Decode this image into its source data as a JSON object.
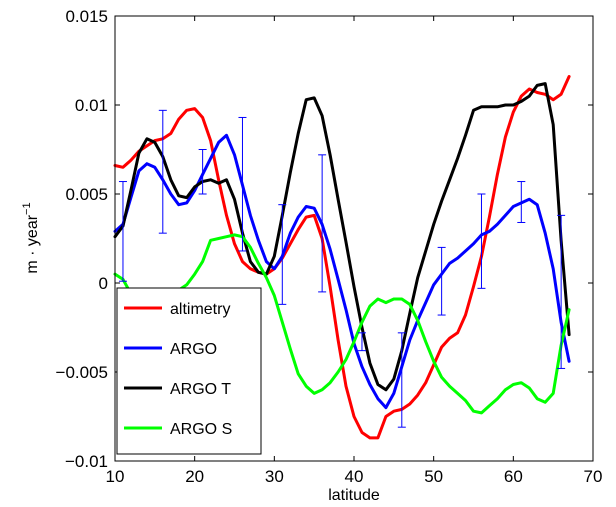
{
  "chart_data": {
    "type": "line",
    "title": "",
    "xlabel": "latitude",
    "ylabel_main": "m · year",
    "ylabel_sup": "−1",
    "xlim": [
      10,
      70
    ],
    "ylim": [
      -0.01,
      0.015
    ],
    "xticks": [
      10,
      20,
      30,
      40,
      50,
      60,
      70
    ],
    "xtick_labels": [
      "10",
      "20",
      "30",
      "40",
      "50",
      "60",
      "70"
    ],
    "yticks": [
      -0.01,
      -0.005,
      0,
      0.005,
      0.01,
      0.015
    ],
    "ytick_labels": [
      "−0.01",
      "−0.005",
      "0",
      "0.005",
      "0.01",
      "0.015"
    ],
    "grid": false,
    "legend_position": "bottom-left",
    "series": [
      {
        "name": "altimetry",
        "color": "#ff0000",
        "x": [
          10,
          11,
          12,
          13,
          14,
          15,
          16,
          17,
          18,
          19,
          20,
          21,
          22,
          23,
          24,
          25,
          26,
          27,
          28,
          29,
          30,
          31,
          32,
          33,
          34,
          35,
          36,
          37,
          38,
          39,
          40,
          41,
          42,
          43,
          44,
          45,
          46,
          47,
          48,
          49,
          50,
          51,
          52,
          53,
          54,
          55,
          56,
          57,
          58,
          59,
          60,
          61,
          62,
          63,
          64,
          65,
          66,
          67
        ],
        "y": [
          0.0066,
          0.0065,
          0.0069,
          0.0074,
          0.0077,
          0.008,
          0.0081,
          0.0084,
          0.0092,
          0.0097,
          0.0098,
          0.0093,
          0.008,
          0.0058,
          0.0038,
          0.0022,
          0.0012,
          0.0008,
          0.0006,
          0.0005,
          0.0008,
          0.0014,
          0.0022,
          0.003,
          0.0037,
          0.0038,
          0.0025,
          -0.0002,
          -0.0032,
          -0.0058,
          -0.0075,
          -0.0084,
          -0.0087,
          -0.0087,
          -0.0075,
          -0.0072,
          -0.0071,
          -0.0068,
          -0.0063,
          -0.0056,
          -0.0046,
          -0.0036,
          -0.0031,
          -0.0028,
          -0.0018,
          -0.0002,
          0.0015,
          0.0037,
          0.0061,
          0.0082,
          0.0096,
          0.0105,
          0.0109,
          0.0107,
          0.0106,
          0.0103,
          0.0106,
          0.0116
        ]
      },
      {
        "name": "ARGO",
        "color": "#0000ff",
        "x": [
          10,
          11,
          12,
          13,
          14,
          15,
          16,
          17,
          18,
          19,
          20,
          21,
          22,
          23,
          24,
          25,
          26,
          27,
          28,
          29,
          30,
          31,
          32,
          33,
          34,
          35,
          36,
          37,
          38,
          39,
          40,
          41,
          42,
          43,
          44,
          45,
          46,
          47,
          48,
          49,
          50,
          51,
          52,
          53,
          54,
          55,
          56,
          57,
          58,
          59,
          60,
          61,
          62,
          63,
          64,
          65,
          66,
          67
        ],
        "y": [
          0.0029,
          0.0033,
          0.0048,
          0.0063,
          0.0067,
          0.0065,
          0.0058,
          0.005,
          0.0044,
          0.0045,
          0.0052,
          0.0061,
          0.007,
          0.0079,
          0.0083,
          0.0072,
          0.0055,
          0.0038,
          0.0024,
          0.0012,
          0.0008,
          0.0015,
          0.0028,
          0.0037,
          0.0043,
          0.0042,
          0.0033,
          0.0019,
          0.0002,
          -0.0015,
          -0.0034,
          -0.0047,
          -0.0057,
          -0.0065,
          -0.007,
          -0.0062,
          -0.0047,
          -0.0032,
          -0.0021,
          -0.0011,
          -0.0001,
          0.0005,
          0.0011,
          0.0014,
          0.0018,
          0.0022,
          0.0027,
          0.0029,
          0.0033,
          0.0038,
          0.0043,
          0.0045,
          0.0047,
          0.0044,
          0.0028,
          0.0008,
          -0.0022,
          -0.0044
        ]
      },
      {
        "name": "ARGO T",
        "color": "#000000",
        "x": [
          10,
          11,
          12,
          13,
          14,
          15,
          16,
          17,
          18,
          19,
          20,
          21,
          22,
          23,
          24,
          25,
          26,
          27,
          28,
          29,
          30,
          31,
          32,
          33,
          34,
          35,
          36,
          37,
          38,
          39,
          40,
          41,
          42,
          43,
          44,
          45,
          46,
          47,
          48,
          49,
          50,
          51,
          52,
          53,
          54,
          55,
          56,
          57,
          58,
          59,
          60,
          61,
          62,
          63,
          64,
          65,
          66,
          67
        ],
        "y": [
          0.0026,
          0.0032,
          0.0052,
          0.0073,
          0.0081,
          0.0079,
          0.0071,
          0.0058,
          0.0049,
          0.0048,
          0.0054,
          0.0057,
          0.0058,
          0.0056,
          0.0058,
          0.0047,
          0.0028,
          0.0012,
          0.0006,
          0.0005,
          0.0015,
          0.0038,
          0.0062,
          0.0084,
          0.0103,
          0.0104,
          0.0094,
          0.0072,
          0.0047,
          0.0023,
          -0.0002,
          -0.0025,
          -0.0045,
          -0.0057,
          -0.006,
          -0.0054,
          -0.0038,
          -0.0017,
          0.0003,
          0.0018,
          0.0033,
          0.0046,
          0.0058,
          0.007,
          0.0083,
          0.0097,
          0.0099,
          0.0099,
          0.0099,
          0.01,
          0.01,
          0.0102,
          0.0105,
          0.0111,
          0.0112,
          0.0089,
          0.0024,
          -0.0029
        ]
      },
      {
        "name": "ARGO S",
        "color": "#00ff00",
        "x": [
          10,
          11,
          12,
          13,
          14,
          15,
          16,
          17,
          18,
          19,
          20,
          21,
          22,
          23,
          24,
          25,
          26,
          27,
          28,
          29,
          30,
          31,
          32,
          33,
          34,
          35,
          36,
          37,
          38,
          39,
          40,
          41,
          42,
          43,
          44,
          45,
          46,
          47,
          48,
          49,
          50,
          51,
          52,
          53,
          54,
          55,
          56,
          57,
          58,
          59,
          60,
          61,
          62,
          63,
          64,
          65,
          66,
          67
        ],
        "y": [
          0.0005,
          0.0002,
          -0.0006,
          -0.0013,
          -0.0014,
          -0.0012,
          -0.0013,
          -0.0011,
          -0.0004,
          -0.0001,
          0.0005,
          0.0012,
          0.0024,
          0.0025,
          0.0026,
          0.0027,
          0.0026,
          0.002,
          0.0011,
          0.0003,
          -0.0007,
          -0.0022,
          -0.0037,
          -0.0051,
          -0.0058,
          -0.0062,
          -0.006,
          -0.0056,
          -0.005,
          -0.0043,
          -0.0033,
          -0.0022,
          -0.0013,
          -0.0009,
          -0.0011,
          -0.0009,
          -0.0009,
          -0.0012,
          -0.0021,
          -0.0033,
          -0.0044,
          -0.0053,
          -0.0058,
          -0.0062,
          -0.0066,
          -0.0072,
          -0.0073,
          -0.0069,
          -0.0065,
          -0.006,
          -0.0057,
          -0.0056,
          -0.0059,
          -0.0065,
          -0.0067,
          -0.0062,
          -0.0035,
          -0.0015
        ]
      }
    ],
    "error_bars": {
      "series": "ARGO",
      "color": "#0000ff",
      "points": [
        {
          "x": 11,
          "low": 0.0001,
          "high": 0.0057
        },
        {
          "x": 16,
          "low": 0.0028,
          "high": 0.0097
        },
        {
          "x": 21,
          "low": 0.005,
          "high": 0.0075
        },
        {
          "x": 26,
          "low": 0.0018,
          "high": 0.0093
        },
        {
          "x": 31,
          "low": -0.0012,
          "high": 0.0044
        },
        {
          "x": 36,
          "low": -0.0005,
          "high": 0.0072
        },
        {
          "x": 41,
          "low": -0.0038,
          "high": -0.0028
        },
        {
          "x": 46,
          "low": -0.0081,
          "high": -0.0028
        },
        {
          "x": 51,
          "low": -0.0018,
          "high": 0.002
        },
        {
          "x": 56,
          "low": -0.0003,
          "high": 0.005
        },
        {
          "x": 61,
          "low": 0.0034,
          "high": 0.0057
        },
        {
          "x": 66,
          "low": -0.0048,
          "high": 0.0038
        }
      ]
    }
  }
}
